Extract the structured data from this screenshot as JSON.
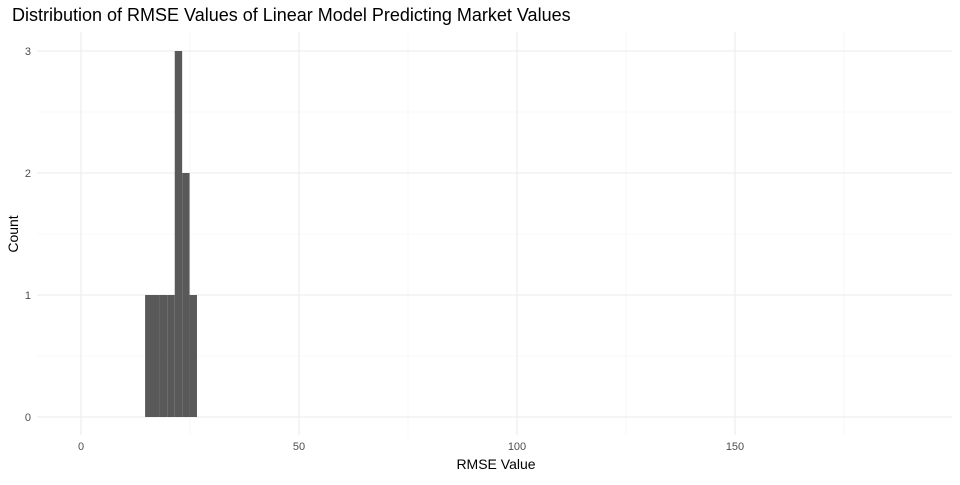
{
  "chart_data": {
    "type": "bar",
    "title": "Distribution of RMSE Values of Linear Model Predicting Market Values",
    "xlabel": "RMSE Value",
    "ylabel": "Count",
    "xlim": [
      -10,
      200
    ],
    "ylim": [
      0,
      3
    ],
    "x_ticks": [
      0,
      50,
      100,
      150
    ],
    "x_minor_ticks": [
      25,
      75,
      125,
      175
    ],
    "y_ticks": [
      0,
      1,
      2,
      3
    ],
    "y_minor_ticks": [
      0.5,
      1.5,
      2.5
    ],
    "grid": true,
    "bar_color": "#595959",
    "bins": [
      {
        "x0": 14.7,
        "x1": 16.4,
        "count": 1
      },
      {
        "x0": 16.4,
        "x1": 18.1,
        "count": 1
      },
      {
        "x0": 18.1,
        "x1": 19.8,
        "count": 1
      },
      {
        "x0": 19.8,
        "x1": 21.5,
        "count": 1
      },
      {
        "x0": 21.5,
        "x1": 23.2,
        "count": 3
      },
      {
        "x0": 23.2,
        "x1": 24.9,
        "count": 2
      },
      {
        "x0": 24.9,
        "x1": 26.6,
        "count": 1
      }
    ]
  }
}
